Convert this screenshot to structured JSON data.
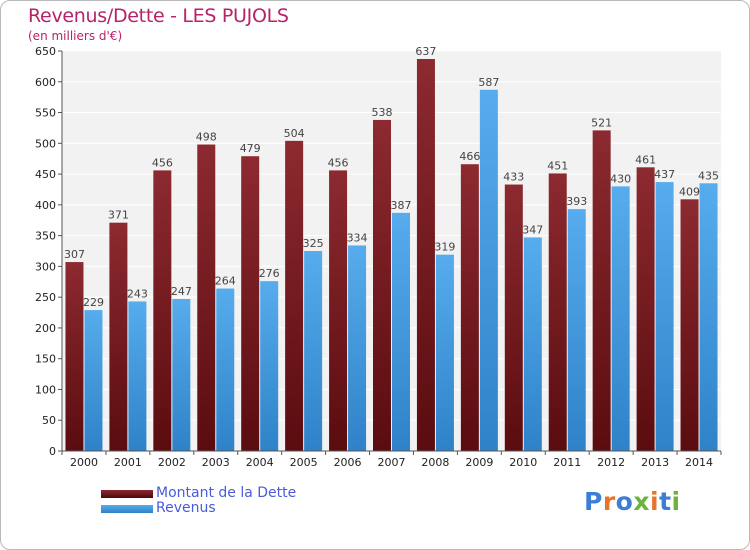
{
  "header": {
    "title": "Revenus/Dette - LES PUJOLS",
    "subtitle": "(en milliers d'€)"
  },
  "legend": {
    "items": [
      {
        "label": "Montant de la Dette",
        "color": "#7a1a1f"
      },
      {
        "label": "Revenus",
        "color": "#3b9ae1"
      }
    ]
  },
  "brand": {
    "text": "Proxiti",
    "colors": [
      "#3b7fd4",
      "#e8742c",
      "#3b7fd4",
      "#6cb33e",
      "#e8742c",
      "#3b7fd4",
      "#6cb33e"
    ]
  },
  "chart_data": {
    "type": "bar",
    "title": "Revenus/Dette - LES PUJOLS",
    "subtitle": "(en milliers d'€)",
    "xlabel": "",
    "ylabel": "",
    "categories": [
      "2000",
      "2001",
      "2002",
      "2003",
      "2004",
      "2005",
      "2006",
      "2007",
      "2008",
      "2009",
      "2010",
      "2011",
      "2012",
      "2013",
      "2014"
    ],
    "series": [
      {
        "name": "Montant de la Dette",
        "color": "#7a1a1f",
        "values": [
          307,
          371,
          456,
          498,
          479,
          504,
          456,
          538,
          637,
          466,
          433,
          451,
          521,
          461,
          409
        ]
      },
      {
        "name": "Revenus",
        "color": "#3b9ae1",
        "values": [
          229,
          243,
          247,
          264,
          276,
          325,
          334,
          387,
          319,
          587,
          347,
          393,
          430,
          437,
          435
        ]
      }
    ],
    "ylim": [
      0,
      650
    ],
    "yticks": [
      0,
      50,
      100,
      150,
      200,
      250,
      300,
      350,
      400,
      450,
      500,
      550,
      600,
      650
    ],
    "grid": true,
    "legend_position": "bottom-left"
  }
}
